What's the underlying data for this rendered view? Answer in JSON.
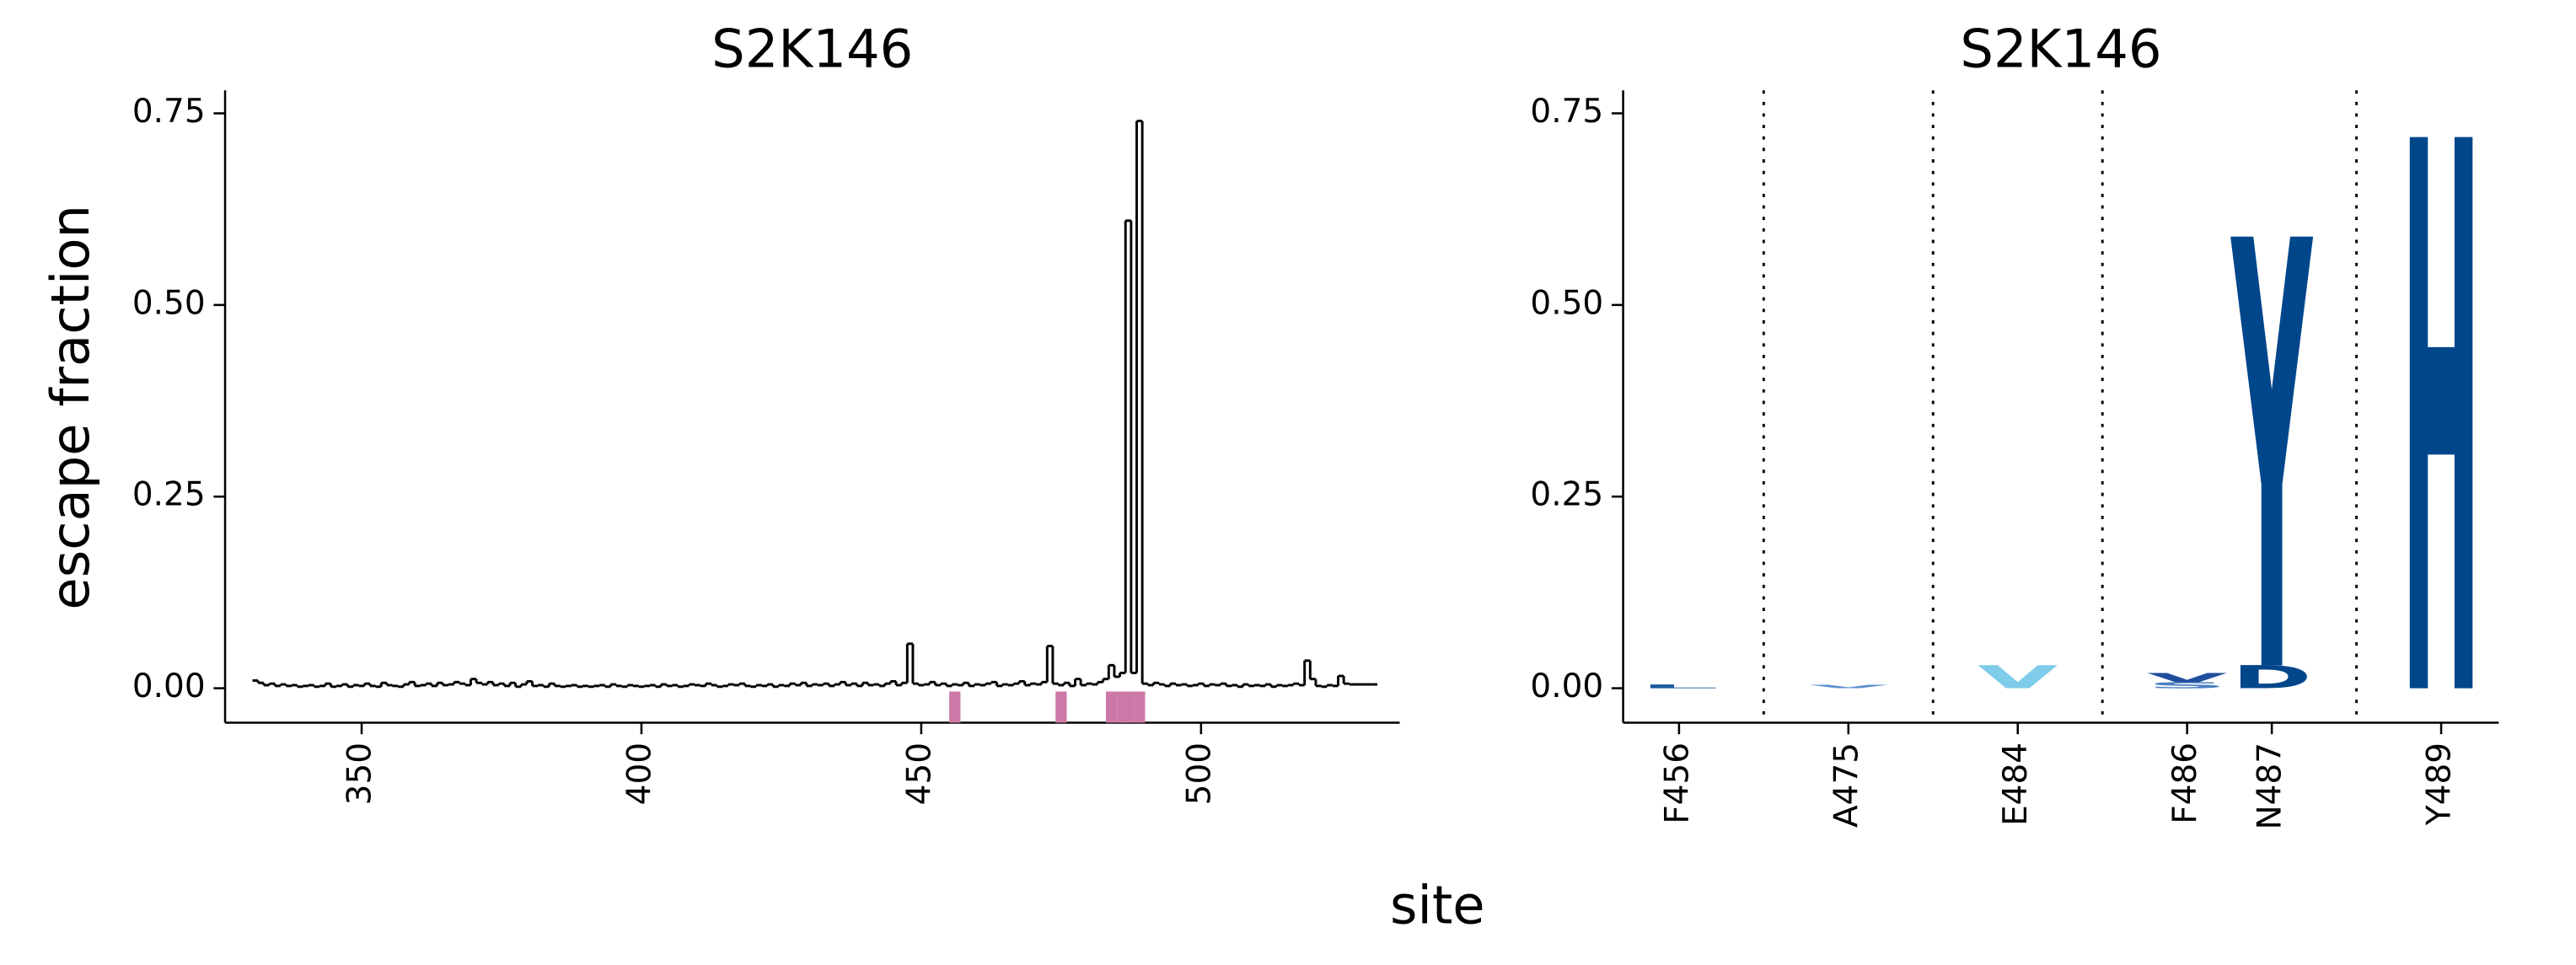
{
  "figure_labels": {
    "xlabel": "site",
    "ylabel": "escape fraction"
  },
  "chart_data": [
    {
      "type": "step",
      "title": "S2K146",
      "color": "#000000",
      "x": [
        331,
        332,
        333,
        334,
        335,
        336,
        337,
        338,
        339,
        340,
        341,
        342,
        343,
        344,
        345,
        346,
        347,
        348,
        349,
        350,
        351,
        352,
        353,
        354,
        355,
        356,
        357,
        358,
        359,
        360,
        361,
        362,
        363,
        364,
        365,
        366,
        367,
        368,
        369,
        370,
        371,
        372,
        373,
        374,
        375,
        376,
        377,
        378,
        379,
        380,
        381,
        382,
        383,
        384,
        385,
        386,
        387,
        388,
        389,
        390,
        391,
        392,
        393,
        394,
        395,
        396,
        397,
        398,
        399,
        400,
        401,
        402,
        403,
        404,
        405,
        406,
        407,
        408,
        409,
        410,
        411,
        412,
        413,
        414,
        415,
        416,
        417,
        418,
        419,
        420,
        421,
        422,
        423,
        424,
        425,
        426,
        427,
        428,
        429,
        430,
        431,
        432,
        433,
        434,
        435,
        436,
        437,
        438,
        439,
        440,
        441,
        442,
        443,
        444,
        445,
        446,
        447,
        448,
        449,
        450,
        451,
        452,
        453,
        454,
        455,
        456,
        457,
        458,
        459,
        460,
        461,
        462,
        463,
        464,
        465,
        466,
        467,
        468,
        469,
        470,
        471,
        472,
        473,
        474,
        475,
        476,
        477,
        478,
        479,
        480,
        481,
        482,
        483,
        484,
        485,
        486,
        487,
        488,
        489,
        490,
        491,
        492,
        493,
        494,
        495,
        496,
        497,
        498,
        499,
        500,
        501,
        502,
        503,
        504,
        505,
        506,
        507,
        508,
        509,
        510,
        511,
        512,
        513,
        514,
        515,
        516,
        517,
        518,
        519,
        520,
        521,
        522,
        523,
        524,
        525,
        526,
        527,
        528,
        529,
        530,
        531
      ],
      "values": [
        0.01,
        0.007,
        0.004,
        0.006,
        0.003,
        0.005,
        0.003,
        0.004,
        0.002,
        0.003,
        0.004,
        0.002,
        0.003,
        0.006,
        0.002,
        0.003,
        0.005,
        0.002,
        0.004,
        0.003,
        0.006,
        0.003,
        0.002,
        0.007,
        0.004,
        0.003,
        0.002,
        0.005,
        0.008,
        0.003,
        0.004,
        0.006,
        0.003,
        0.007,
        0.004,
        0.005,
        0.008,
        0.006,
        0.004,
        0.012,
        0.007,
        0.005,
        0.008,
        0.004,
        0.006,
        0.003,
        0.007,
        0.002,
        0.005,
        0.009,
        0.003,
        0.004,
        0.002,
        0.006,
        0.003,
        0.002,
        0.003,
        0.004,
        0.002,
        0.003,
        0.002,
        0.003,
        0.004,
        0.002,
        0.005,
        0.003,
        0.002,
        0.004,
        0.003,
        0.002,
        0.003,
        0.004,
        0.002,
        0.005,
        0.003,
        0.004,
        0.002,
        0.003,
        0.005,
        0.004,
        0.003,
        0.006,
        0.004,
        0.002,
        0.003,
        0.005,
        0.004,
        0.006,
        0.003,
        0.002,
        0.004,
        0.003,
        0.005,
        0.002,
        0.004,
        0.003,
        0.006,
        0.004,
        0.007,
        0.003,
        0.005,
        0.004,
        0.006,
        0.003,
        0.005,
        0.008,
        0.004,
        0.006,
        0.003,
        0.007,
        0.004,
        0.005,
        0.003,
        0.006,
        0.009,
        0.004,
        0.007,
        0.058,
        0.006,
        0.004,
        0.005,
        0.008,
        0.004,
        0.006,
        0.003,
        0.005,
        0.004,
        0.007,
        0.003,
        0.005,
        0.004,
        0.006,
        0.008,
        0.003,
        0.005,
        0.004,
        0.006,
        0.009,
        0.004,
        0.006,
        0.005,
        0.008,
        0.055,
        0.006,
        0.004,
        0.007,
        0.003,
        0.012,
        0.004,
        0.006,
        0.005,
        0.008,
        0.012,
        0.03,
        0.015,
        0.02,
        0.61,
        0.02,
        0.74,
        0.006,
        0.004,
        0.007,
        0.005,
        0.003,
        0.006,
        0.004,
        0.005,
        0.003,
        0.004,
        0.006,
        0.003,
        0.005,
        0.004,
        0.006,
        0.003,
        0.004,
        0.002,
        0.005,
        0.003,
        0.004,
        0.003,
        0.005,
        0.002,
        0.004,
        0.003,
        0.004,
        0.006,
        0.004,
        0.036,
        0.012,
        0.003,
        0.002,
        0.004,
        0.003,
        0.016,
        0.006,
        0.005,
        0.005,
        0.005,
        0.005,
        0.005
      ],
      "highlight_sites": [
        456,
        475,
        484,
        486,
        487,
        489
      ],
      "highlight_color": "#cc79a7",
      "xlim": [
        325.6,
        535.5
      ],
      "xticks": [
        350,
        400,
        450,
        500
      ],
      "ylim": [
        -0.045,
        0.78
      ],
      "yticks": [
        {
          "value": 0,
          "label": "0.00"
        },
        {
          "value": 0.25,
          "label": "0.25"
        },
        {
          "value": 0.5,
          "label": "0.50"
        },
        {
          "value": 0.75,
          "label": "0.75"
        }
      ]
    },
    {
      "type": "logo",
      "title": "S2K146",
      "categories": [
        "F456",
        "A475",
        "E484",
        "F486",
        "N487",
        "Y489"
      ],
      "stacks": [
        [
          {
            "letter": "L",
            "value": 0.005,
            "color": "#1a5aa0"
          }
        ],
        [
          {
            "letter": "V",
            "value": 0.004,
            "color": "#5a8fcf"
          }
        ],
        [
          {
            "letter": "V",
            "value": 0.03,
            "color": "#7ecbea"
          }
        ],
        [
          {
            "letter": "S",
            "value": 0.008,
            "color": "#4a7fc0"
          },
          {
            "letter": "V",
            "value": 0.012,
            "color": "#1f4e9c"
          }
        ],
        [
          {
            "letter": "D",
            "value": 0.03,
            "color": "#00468b"
          },
          {
            "letter": "Y",
            "value": 0.56,
            "color": "#00468b"
          }
        ],
        [
          {
            "letter": "H",
            "value": 0.72,
            "color": "#00468b"
          }
        ]
      ],
      "ylim": [
        -0.045,
        0.78
      ],
      "yticks": [
        {
          "value": 0,
          "label": "0.00"
        },
        {
          "value": 0.25,
          "label": "0.25"
        },
        {
          "value": 0.5,
          "label": "0.50"
        },
        {
          "value": 0.75,
          "label": "0.75"
        }
      ]
    }
  ]
}
